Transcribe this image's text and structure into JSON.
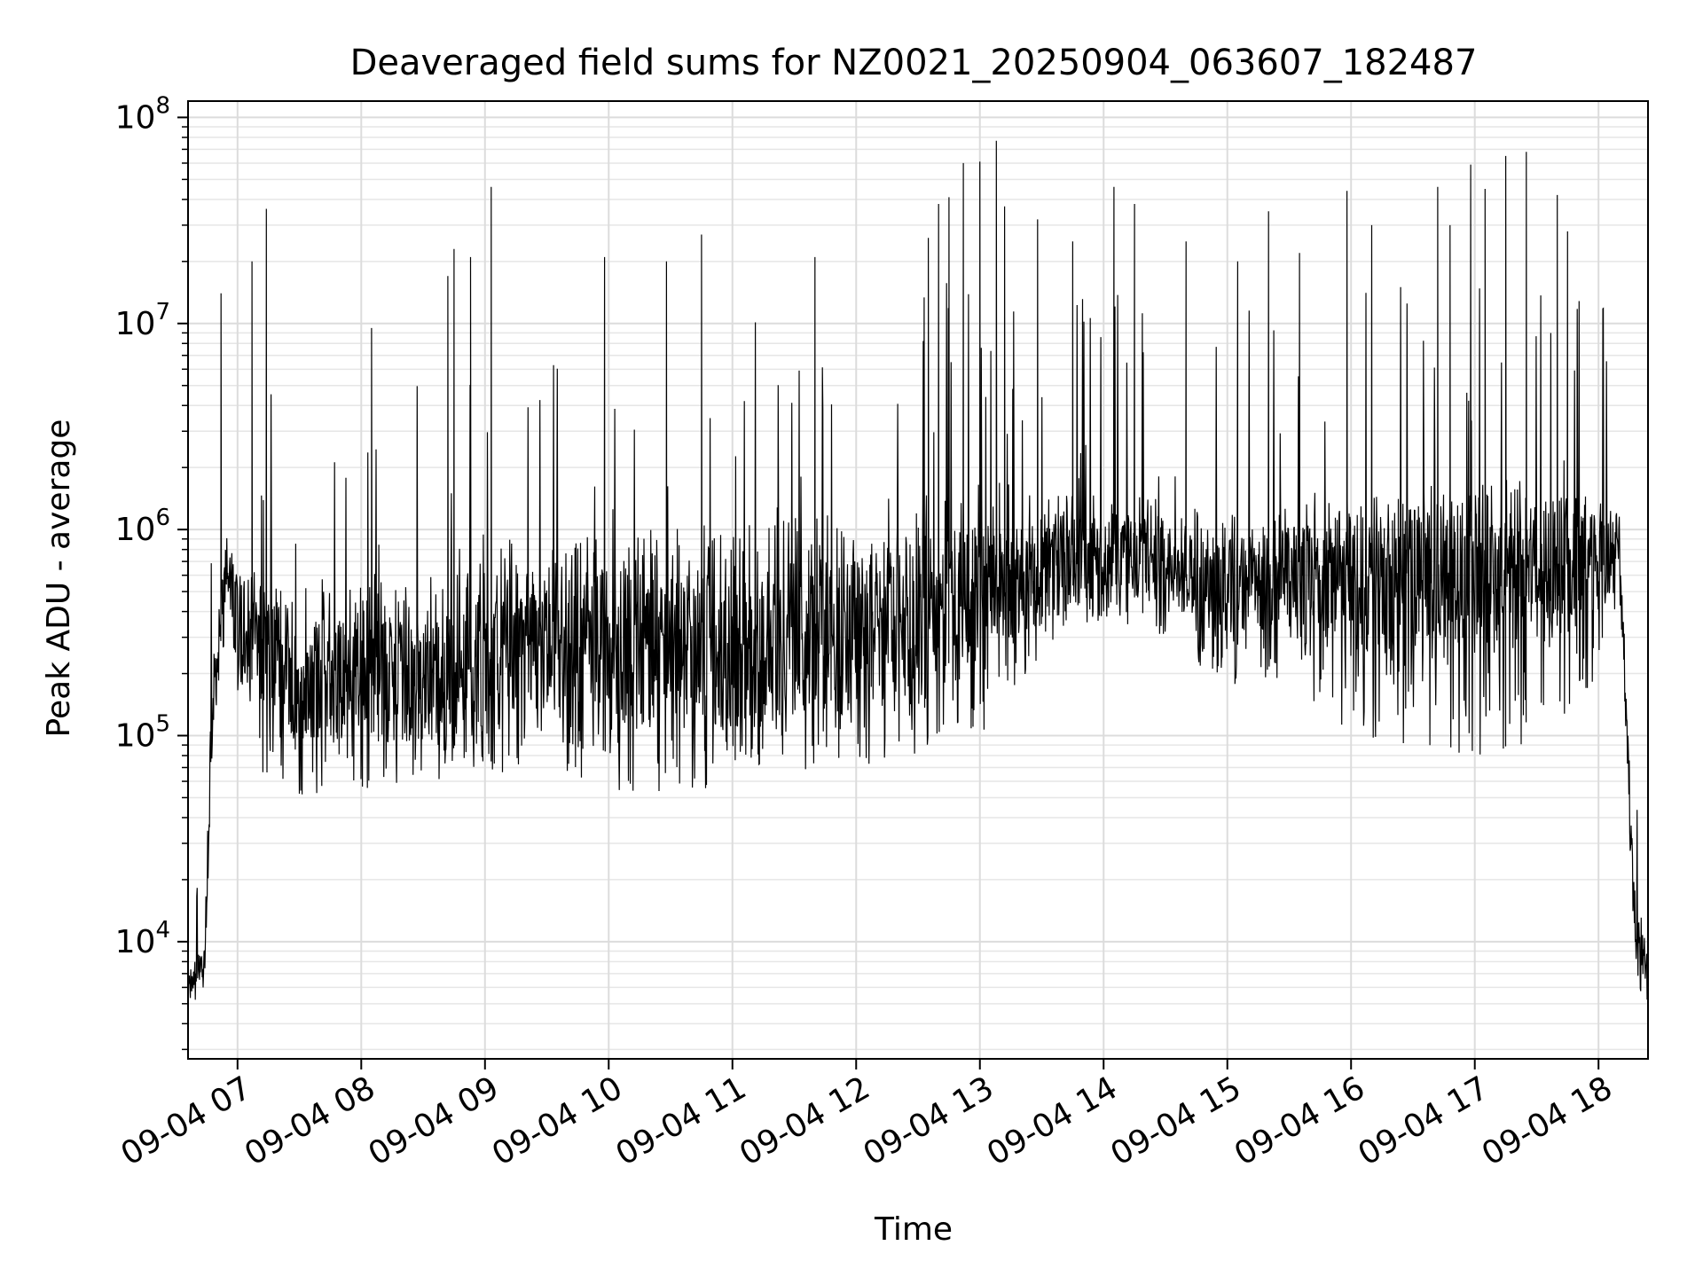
{
  "chart_data": {
    "type": "line",
    "title": "Deaveraged field sums for NZ0021_20250904_063607_182487",
    "xlabel": "Time",
    "ylabel": "Peak ADU - average",
    "y_scale": "log",
    "ylim": [
      2700,
      120000000
    ],
    "xlim": [
      "2025-09-04 06:36",
      "2025-09-04 18:24"
    ],
    "x_ticks": [
      "09-04 07",
      "09-04 08",
      "09-04 09",
      "09-04 10",
      "09-04 11",
      "09-04 12",
      "09-04 13",
      "09-04 14",
      "09-04 15",
      "09-04 16",
      "09-04 17",
      "09-04 18"
    ],
    "y_ticks": [
      {
        "value": 10000,
        "base": "10",
        "exp": "4"
      },
      {
        "value": 100000,
        "base": "10",
        "exp": "5"
      },
      {
        "value": 1000000,
        "base": "10",
        "exp": "6"
      },
      {
        "value": 10000000,
        "base": "10",
        "exp": "7"
      },
      {
        "value": 100000000,
        "base": "10",
        "exp": "8"
      }
    ],
    "grid": true,
    "line_color": "#000000",
    "envelope": {
      "times": [
        "2025-09-04 06:36",
        "2025-09-04 06:44",
        "2025-09-04 06:48",
        "2025-09-04 06:55",
        "2025-09-04 07:00",
        "2025-09-04 07:30",
        "2025-09-04 08:00",
        "2025-09-04 08:30",
        "2025-09-04 09:00",
        "2025-09-04 09:30",
        "2025-09-04 10:00",
        "2025-09-04 10:30",
        "2025-09-04 11:00",
        "2025-09-04 11:30",
        "2025-09-04 12:00",
        "2025-09-04 12:30",
        "2025-09-04 13:00",
        "2025-09-04 13:30",
        "2025-09-04 14:00",
        "2025-09-04 14:30",
        "2025-09-04 15:00",
        "2025-09-04 15:30",
        "2025-09-04 16:00",
        "2025-09-04 16:30",
        "2025-09-04 17:00",
        "2025-09-04 17:30",
        "2025-09-04 18:00",
        "2025-09-04 18:10",
        "2025-09-04 18:18",
        "2025-09-04 18:24"
      ],
      "center": [
        5500,
        8000,
        150000,
        700000,
        350000,
        180000,
        200000,
        180000,
        220000,
        250000,
        280000,
        250000,
        250000,
        300000,
        300000,
        380000,
        450000,
        600000,
        750000,
        700000,
        550000,
        600000,
        500000,
        550000,
        600000,
        650000,
        700000,
        800000,
        10000,
        7000
      ],
      "low": [
        4500,
        6000,
        80000,
        400000,
        80000,
        50000,
        55000,
        60000,
        65000,
        70000,
        55000,
        50000,
        60000,
        65000,
        70000,
        80000,
        100000,
        250000,
        350000,
        300000,
        170000,
        180000,
        100000,
        90000,
        80000,
        90000,
        180000,
        500000,
        5000,
        5000
      ],
      "high": [
        7000,
        12000,
        300000,
        1000000,
        700000,
        500000,
        550000,
        600000,
        700000,
        800000,
        1000000,
        1000000,
        1100000,
        1200000,
        1300000,
        1500000,
        1800000,
        1600000,
        1500000,
        1400000,
        1200000,
        1300000,
        1400000,
        1600000,
        1700000,
        1800000,
        1500000,
        1200000,
        20000,
        9000
      ]
    },
    "spikes": [
      {
        "t": "2025-09-04 06:52",
        "y": 14000000
      },
      {
        "t": "2025-09-04 07:07",
        "y": 20000000
      },
      {
        "t": "2025-09-04 07:14",
        "y": 36000000
      },
      {
        "t": "2025-09-04 08:05",
        "y": 9500000
      },
      {
        "t": "2025-09-04 08:42",
        "y": 17000000
      },
      {
        "t": "2025-09-04 08:45",
        "y": 23000000
      },
      {
        "t": "2025-09-04 08:53",
        "y": 21000000
      },
      {
        "t": "2025-09-04 09:03",
        "y": 46000000
      },
      {
        "t": "2025-09-04 09:58",
        "y": 21000000
      },
      {
        "t": "2025-09-04 10:28",
        "y": 20000000
      },
      {
        "t": "2025-09-04 10:45",
        "y": 27000000
      },
      {
        "t": "2025-09-04 11:40",
        "y": 21000000
      },
      {
        "t": "2025-09-04 12:35",
        "y": 26000000
      },
      {
        "t": "2025-09-04 12:40",
        "y": 38000000
      },
      {
        "t": "2025-09-04 12:45",
        "y": 41000000
      },
      {
        "t": "2025-09-04 12:52",
        "y": 60000000
      },
      {
        "t": "2025-09-04 13:00",
        "y": 61000000
      },
      {
        "t": "2025-09-04 13:08",
        "y": 77000000
      },
      {
        "t": "2025-09-04 13:12",
        "y": 37000000
      },
      {
        "t": "2025-09-04 13:28",
        "y": 32000000
      },
      {
        "t": "2025-09-04 13:45",
        "y": 25000000
      },
      {
        "t": "2025-09-04 14:05",
        "y": 46000000
      },
      {
        "t": "2025-09-04 14:15",
        "y": 38000000
      },
      {
        "t": "2025-09-04 14:40",
        "y": 25000000
      },
      {
        "t": "2025-09-04 15:05",
        "y": 20000000
      },
      {
        "t": "2025-09-04 15:20",
        "y": 35000000
      },
      {
        "t": "2025-09-04 15:35",
        "y": 22000000
      },
      {
        "t": "2025-09-04 15:58",
        "y": 44000000
      },
      {
        "t": "2025-09-04 16:10",
        "y": 30000000
      },
      {
        "t": "2025-09-04 16:42",
        "y": 46000000
      },
      {
        "t": "2025-09-04 16:48",
        "y": 30000000
      },
      {
        "t": "2025-09-04 16:58",
        "y": 59000000
      },
      {
        "t": "2025-09-04 17:05",
        "y": 45000000
      },
      {
        "t": "2025-09-04 17:15",
        "y": 65000000
      },
      {
        "t": "2025-09-04 17:25",
        "y": 68000000
      },
      {
        "t": "2025-09-04 17:40",
        "y": 42000000
      },
      {
        "t": "2025-09-04 17:45",
        "y": 28000000
      }
    ]
  }
}
